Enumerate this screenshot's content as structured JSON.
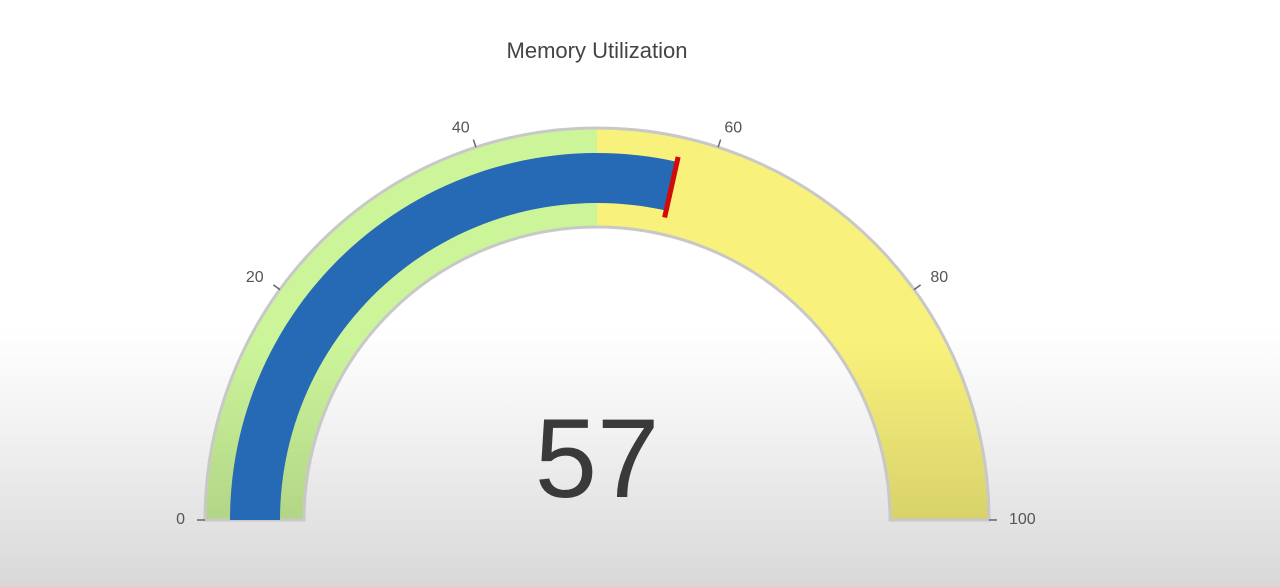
{
  "chart_data": {
    "type": "gauge",
    "title": "Memory Utilization",
    "value": 57,
    "value_label": "57",
    "min": 0,
    "max": 100,
    "ticks": [
      {
        "value": 0,
        "label": "0"
      },
      {
        "value": 20,
        "label": "20"
      },
      {
        "value": 40,
        "label": "40"
      },
      {
        "value": 60,
        "label": "60"
      },
      {
        "value": 80,
        "label": "80"
      },
      {
        "value": 100,
        "label": "100"
      }
    ],
    "bands": [
      {
        "from": 0,
        "to": 50,
        "color": "#ccf59a"
      },
      {
        "from": 50,
        "to": 100,
        "color": "#f8f17b"
      }
    ],
    "value_bar_color": "#2669b5",
    "value_marker_color": "#d10a0a",
    "track_border_color": "#c8c8c8"
  }
}
